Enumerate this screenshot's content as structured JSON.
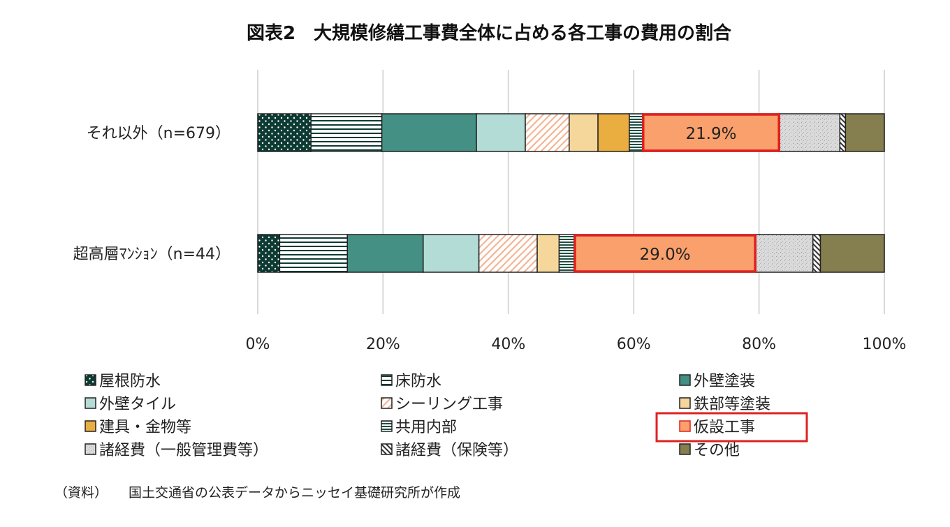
{
  "chart_data": {
    "type": "bar",
    "orientation": "horizontal",
    "stacked": "percent",
    "title": "図表2　大規模修繕工事費全体に占める各工事の費用の割合",
    "categories": [
      "それ以外（n=679）",
      "超高層ﾏﾝｼｮﾝ（n=44）"
    ],
    "xlim": [
      0,
      100
    ],
    "x_ticks": [
      "0%",
      "20%",
      "40%",
      "60%",
      "80%",
      "100%"
    ],
    "grid": "vertical",
    "legend_position": "bottom",
    "series": [
      {
        "name": "屋根防水",
        "values": [
          8.5,
          3.5
        ],
        "color": "#0d3b33",
        "pattern": "dots"
      },
      {
        "name": "床防水",
        "values": [
          11.3,
          10.8
        ],
        "color": "#ffffff",
        "pattern": "hstripes"
      },
      {
        "name": "外壁塗装",
        "values": [
          15.1,
          12.1
        ],
        "color": "#449084",
        "pattern": "solid"
      },
      {
        "name": "外壁タイル",
        "values": [
          7.8,
          8.9
        ],
        "color": "#b3dcd6",
        "pattern": "solid"
      },
      {
        "name": "シーリング工事",
        "values": [
          7.0,
          9.3
        ],
        "color": "#f4b08c",
        "pattern": "diag"
      },
      {
        "name": "鉄部等塗装",
        "values": [
          4.6,
          3.5
        ],
        "color": "#f6d79b",
        "pattern": "solid"
      },
      {
        "name": "建具・金物等",
        "values": [
          5.0,
          0.0
        ],
        "color": "#e9ad40",
        "pattern": "solid"
      },
      {
        "name": "共用内部",
        "values": [
          2.1,
          2.4
        ],
        "color": "#2a5c4f",
        "pattern": "hstripes-dense"
      },
      {
        "name": "仮設工事",
        "values": [
          21.9,
          29.0
        ],
        "color": "#f9a06c",
        "pattern": "solid",
        "highlight": "#e02020"
      },
      {
        "name": "諸経費（一般管理費等）",
        "values": [
          9.6,
          9.1
        ],
        "color": "#d8d8d8",
        "pattern": "speckle"
      },
      {
        "name": "諸経費（保険等）",
        "values": [
          0.9,
          1.2
        ],
        "color": "#ffffff",
        "pattern": "diag-dark"
      },
      {
        "name": "その他",
        "values": [
          6.2,
          10.2
        ],
        "color": "#857f4f",
        "pattern": "solid"
      }
    ],
    "data_labels": [
      {
        "series": "仮設工事",
        "category_index": 0,
        "text": "21.9%"
      },
      {
        "series": "仮設工事",
        "category_index": 1,
        "text": "29.0%"
      }
    ]
  },
  "source_prefix": "（資料）",
  "source_text": "国土交通省の公表データからニッセイ基礎研究所が作成"
}
